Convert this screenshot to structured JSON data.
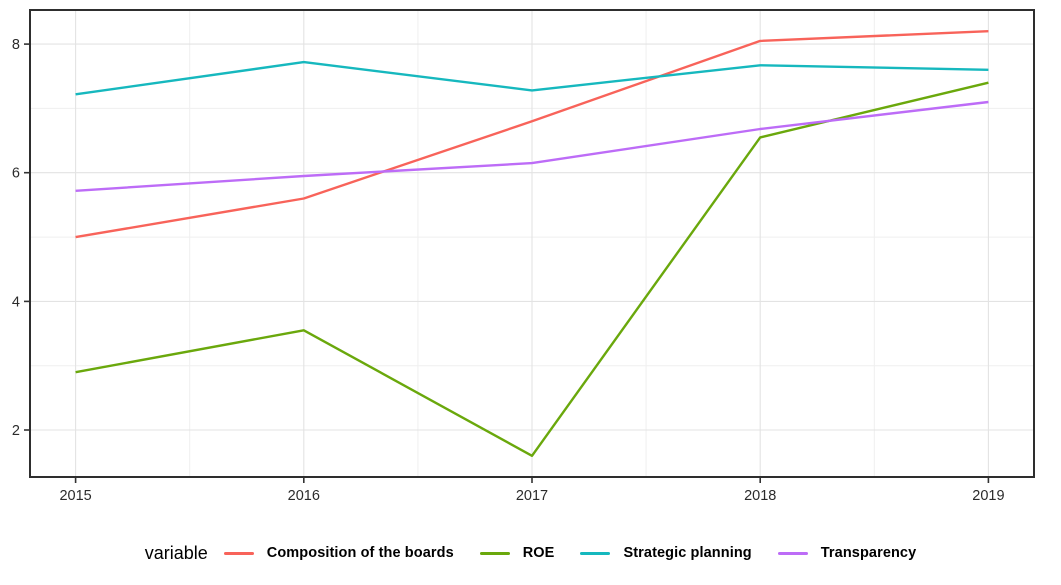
{
  "chart_data": {
    "type": "line",
    "title": "",
    "xlabel": "",
    "ylabel": "",
    "x": [
      2015,
      2016,
      2017,
      2018,
      2019
    ],
    "series": [
      {
        "name": "Composition of the boards",
        "color": "#f8635a",
        "values": [
          5.0,
          5.6,
          6.8,
          8.05,
          8.2
        ]
      },
      {
        "name": "ROE",
        "color": "#6aa80c",
        "values": [
          2.9,
          3.55,
          1.6,
          6.55,
          7.4
        ]
      },
      {
        "name": "Strategic planning",
        "color": "#16b8be",
        "values": [
          7.22,
          7.72,
          7.28,
          7.67,
          7.6
        ]
      },
      {
        "name": "Transparency",
        "color": "#bd6cf7",
        "values": [
          5.72,
          5.95,
          6.15,
          6.68,
          7.1
        ]
      }
    ],
    "x_ticks": [
      2015,
      2016,
      2017,
      2018,
      2019
    ],
    "y_ticks": [
      2,
      4,
      6,
      8
    ],
    "x_minor": [
      2015.5,
      2016.5,
      2017.5,
      2018.5
    ],
    "y_minor": [
      3,
      5,
      7
    ],
    "xlim": [
      2014.8,
      2019.2
    ],
    "ylim": [
      1.27,
      8.53
    ],
    "grid": true,
    "legend_position": "bottom",
    "legend_title": "variable",
    "colors": {
      "panel_border": "#2e2e2e",
      "grid_major": "#e3e3e3",
      "grid_minor": "#efefef",
      "axis_text": "#2b2b2b",
      "tick_mark": "#333333",
      "background": "#ffffff"
    }
  }
}
